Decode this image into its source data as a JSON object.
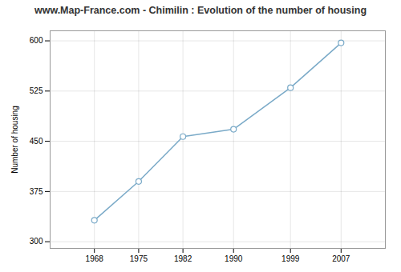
{
  "chart_data": {
    "type": "line",
    "title": "www.Map-France.com - Chimilin : Evolution of the number of housing",
    "ylabel": "Number of housing",
    "x": [
      1968,
      1975,
      1982,
      1990,
      1999,
      2007
    ],
    "values": [
      332,
      390,
      457,
      468,
      530,
      597
    ],
    "color": "#7aaac8",
    "marker": "circle",
    "xlim": [
      1961,
      2014
    ],
    "xticks": [
      1968,
      1975,
      1982,
      1990,
      1999,
      2007
    ],
    "ylim": [
      290,
      615
    ],
    "yticks": [
      300,
      375,
      450,
      525,
      600
    ],
    "grid": true
  }
}
